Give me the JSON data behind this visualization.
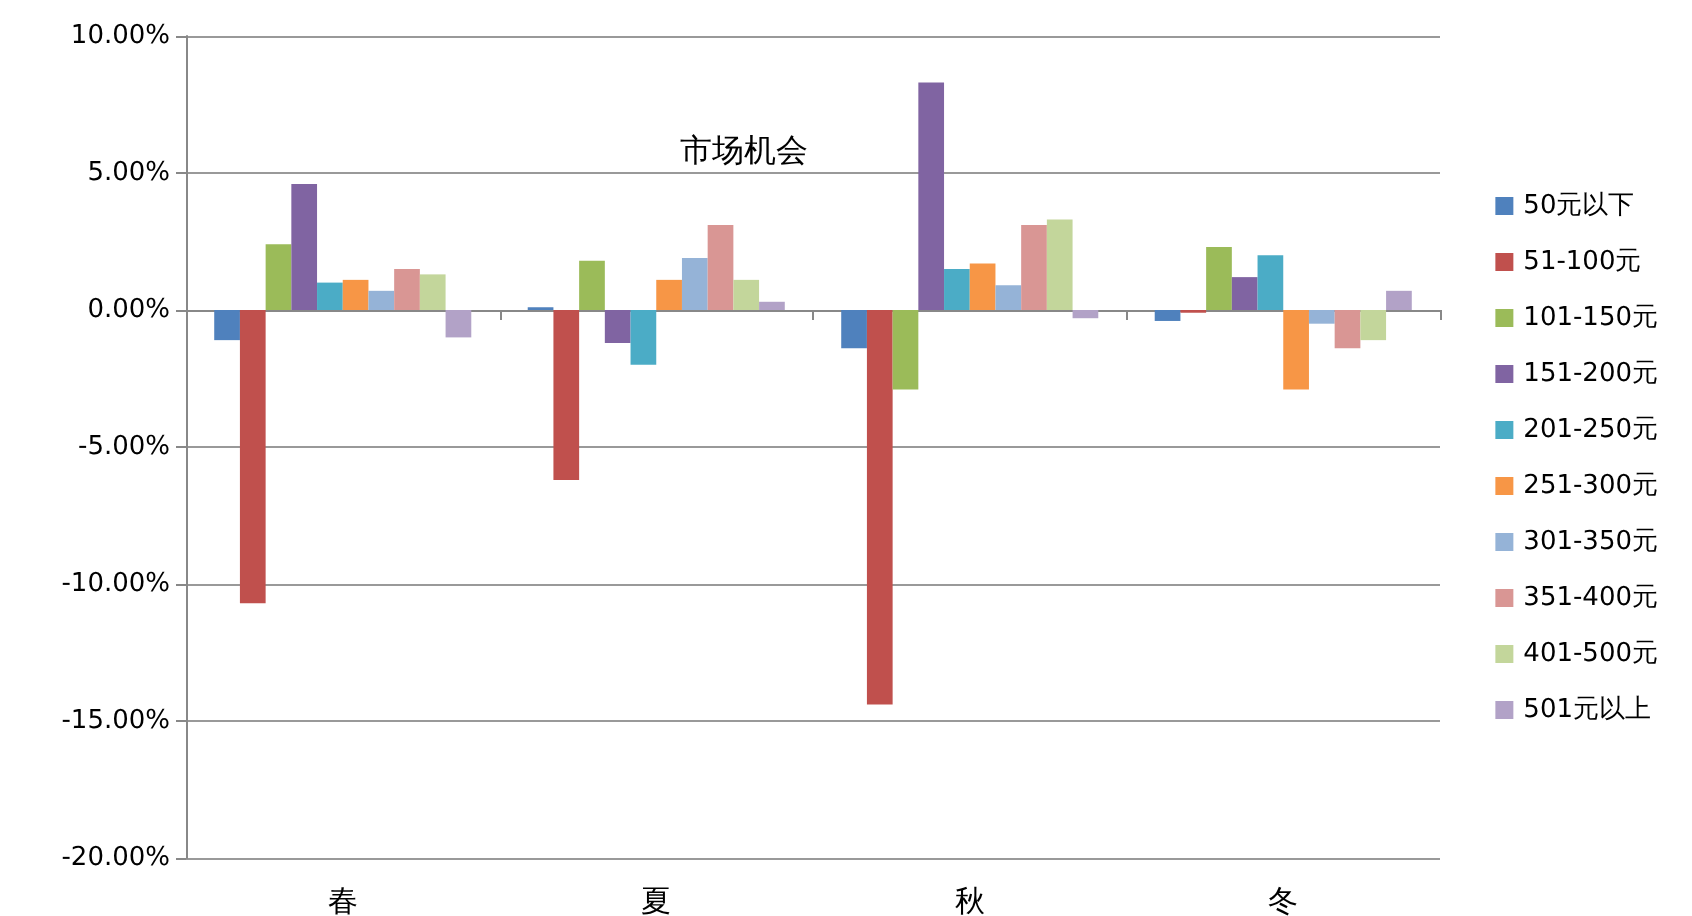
{
  "chart_data": {
    "type": "bar",
    "title": "市场机会",
    "categories": [
      "春",
      "夏",
      "秋",
      "冬"
    ],
    "series": [
      {
        "name": "50元以下",
        "color": "#4f81bd",
        "values": [
          -1.1,
          0.1,
          -1.4,
          -0.4
        ]
      },
      {
        "name": "51-100元",
        "color": "#c0504d",
        "values": [
          -10.7,
          -6.2,
          -14.4,
          -0.1
        ]
      },
      {
        "name": "101-150元",
        "color": "#9bbb59",
        "values": [
          2.4,
          1.8,
          -2.9,
          2.3
        ]
      },
      {
        "name": "151-200元",
        "color": "#8064a2",
        "values": [
          4.6,
          -1.2,
          8.3,
          1.2
        ]
      },
      {
        "name": "201-250元",
        "color": "#4bacc6",
        "values": [
          1.0,
          -2.0,
          1.5,
          2.0
        ]
      },
      {
        "name": "251-300元",
        "color": "#f79646",
        "values": [
          1.1,
          1.1,
          1.7,
          -2.9
        ]
      },
      {
        "name": "301-350元",
        "color": "#95b3d7",
        "values": [
          0.7,
          1.9,
          0.9,
          -0.5
        ]
      },
      {
        "name": "351-400元",
        "color": "#d99694",
        "values": [
          1.5,
          3.1,
          3.1,
          -1.4
        ]
      },
      {
        "name": "401-500元",
        "color": "#c3d69b",
        "values": [
          1.3,
          1.1,
          3.3,
          -1.1
        ]
      },
      {
        "name": "501元以上",
        "color": "#b2a2c7",
        "values": [
          -1.0,
          0.3,
          -0.3,
          0.7
        ]
      }
    ],
    "ylim": [
      -20,
      10
    ],
    "yticks": [
      {
        "value": -20,
        "label": "-20.00%"
      },
      {
        "value": -15,
        "label": "-15.00%"
      },
      {
        "value": -10,
        "label": "-10.00%"
      },
      {
        "value": -5,
        "label": "-5.00%"
      },
      {
        "value": 0,
        "label": "0.00%"
      },
      {
        "value": 5,
        "label": "5.00%"
      },
      {
        "value": 10,
        "label": "10.00%"
      }
    ],
    "grid": "y",
    "legend": "right"
  }
}
